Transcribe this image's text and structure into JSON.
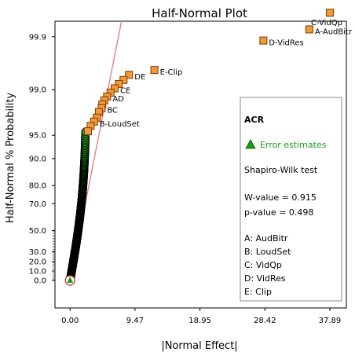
{
  "chart_data": {
    "type": "scatter",
    "title": "Half-Normal Plot",
    "xlabel": "|Normal Effect|",
    "ylabel": "Half-Normal % Probability",
    "x_ticks": [
      "0.00",
      "9.47",
      "18.95",
      "28.42",
      "37.89"
    ],
    "x_tick_values": [
      0.0,
      9.47,
      18.95,
      28.42,
      37.89
    ],
    "xlim": [
      -2.2,
      40.3
    ],
    "y_ticks": [
      "0.0",
      "10.0",
      "20.0",
      "30.0",
      "50.0",
      "70.0",
      "80.0",
      "90.0",
      "95.0",
      "99.0",
      "99.9"
    ],
    "y_tick_values": [
      0.0,
      10.0,
      20.0,
      30.0,
      50.0,
      70.0,
      80.0,
      90.0,
      95.0,
      99.0,
      99.9
    ],
    "y_scale": "half-normal probability",
    "effects": [
      {
        "label": "C-VidQp",
        "x": 37.9,
        "y": 99.97
      },
      {
        "label": "A-AudBitr",
        "x": 34.9,
        "y": 99.93
      },
      {
        "label": "D-VidRes",
        "x": 28.2,
        "y": 99.88
      },
      {
        "label": "E-Clip",
        "x": 12.3,
        "y": 99.55
      },
      {
        "label": "DE",
        "x": 8.6,
        "y": 99.45
      },
      {
        "label": "",
        "x": 7.8,
        "y": 99.32
      },
      {
        "label": "",
        "x": 7.1,
        "y": 99.2
      },
      {
        "label": "CE",
        "x": 6.5,
        "y": 99.05
      },
      {
        "label": "",
        "x": 5.9,
        "y": 98.88
      },
      {
        "label": "AD",
        "x": 5.4,
        "y": 98.7
      },
      {
        "label": "",
        "x": 5.0,
        "y": 98.5
      },
      {
        "label": "",
        "x": 4.7,
        "y": 98.25
      },
      {
        "label": "BC",
        "x": 4.6,
        "y": 98.0
      },
      {
        "label": "",
        "x": 4.2,
        "y": 97.7
      },
      {
        "label": "",
        "x": 3.9,
        "y": 97.2
      },
      {
        "label": "B-LoudSet",
        "x": 3.5,
        "y": 96.8
      },
      {
        "label": "",
        "x": 3.0,
        "y": 96.3
      },
      {
        "label": "",
        "x": 2.6,
        "y": 95.6
      }
    ],
    "error_estimates": "many points forming a dense band from (0,0) up to x≈2.2, y≈95",
    "reference_line": {
      "color": "#e88888"
    },
    "legend": {
      "heading": "ACR",
      "error_label": "Error estimates",
      "test_name": "Shapiro-Wilk test",
      "w_value": "W-value = 0.915",
      "p_value": "p-value = 0.498",
      "factors": [
        "A: AudBitr",
        "B: LoudSet",
        "C: VidQp",
        "D: VidRes",
        "E: Clip"
      ],
      "placement": "right"
    },
    "colors": {
      "effect_fill": "#f29a3a",
      "effect_stroke": "#7a3a00",
      "error_fill": "#1a9c1a",
      "error_stroke": "#000000"
    }
  }
}
